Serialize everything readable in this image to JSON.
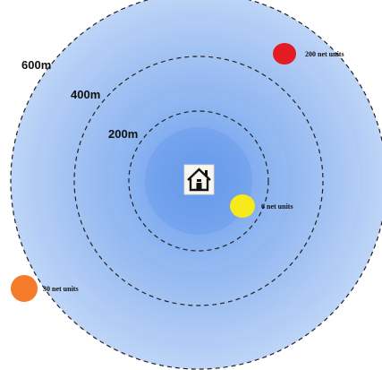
{
  "rings": [
    {
      "label": "600m"
    },
    {
      "label": "400m"
    },
    {
      "label": "200m"
    }
  ],
  "center": {
    "icon": "home-icon"
  },
  "markers": [
    {
      "label": "200 net units",
      "color": "#e41b22"
    },
    {
      "label": "6 net units",
      "color": "#f6ea1a"
    },
    {
      "label": "30 net units",
      "color": "#f47b2a"
    }
  ],
  "colors": {
    "outer_blue": "#bcd4f6",
    "inner_blue": "#5b93ec",
    "dash_stroke": "#222222"
  }
}
